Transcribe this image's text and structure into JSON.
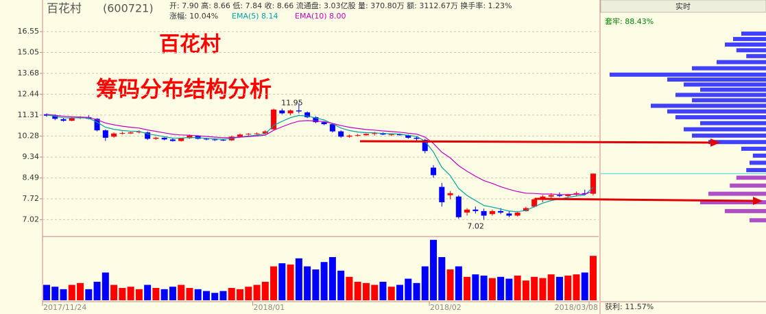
{
  "header": {
    "name": "百花村",
    "code": "(600721)",
    "quote": "开: 7.90 高: 8.66 低: 7.84 收: 8.66 流通盘: 3.03亿股 量: 370.80万 额: 3112.67万 换手率: 1.23%",
    "change": "涨幅: 10.04%",
    "ema5": "EMA(5) 8.14",
    "ema10": "EMA(10) 8.00"
  },
  "overlay": {
    "title": "百花村",
    "subtitle": "筹码分布结构分析"
  },
  "chart_data": {
    "type": "candlestick",
    "log_scale": true,
    "grid": true,
    "categories": [
      "2017/11/24",
      null,
      null,
      null,
      null,
      null,
      null,
      null,
      null,
      null,
      null,
      null,
      null,
      null,
      null,
      null,
      null,
      null,
      null,
      null,
      null,
      null,
      null,
      null,
      null,
      "2018/01",
      null,
      null,
      null,
      null,
      null,
      null,
      null,
      null,
      null,
      null,
      null,
      null,
      null,
      null,
      null,
      null,
      null,
      null,
      null,
      null,
      "2018/02",
      null,
      null,
      null,
      null,
      null,
      null,
      null,
      null,
      null,
      null,
      null,
      null,
      null,
      null,
      null,
      null,
      null,
      null,
      "2018/03/08"
    ],
    "ohlc": [
      [
        11.35,
        11.4,
        11.22,
        11.28
      ],
      [
        11.28,
        11.35,
        11.05,
        11.12
      ],
      [
        11.1,
        11.18,
        10.98,
        11.02
      ],
      [
        11.02,
        11.2,
        11.0,
        11.15
      ],
      [
        11.15,
        11.25,
        11.1,
        11.2
      ],
      [
        11.2,
        11.3,
        11.1,
        11.12
      ],
      [
        11.12,
        11.15,
        10.5,
        10.55
      ],
      [
        10.55,
        10.6,
        10.05,
        10.2
      ],
      [
        10.25,
        10.45,
        10.2,
        10.4
      ],
      [
        10.4,
        10.5,
        10.35,
        10.42
      ],
      [
        10.4,
        10.48,
        10.38,
        10.45
      ],
      [
        10.45,
        10.55,
        10.4,
        10.48
      ],
      [
        10.45,
        10.5,
        10.1,
        10.15
      ],
      [
        10.15,
        10.25,
        10.1,
        10.2
      ],
      [
        10.2,
        10.22,
        10.08,
        10.12
      ],
      [
        10.12,
        10.18,
        10.02,
        10.05
      ],
      [
        10.05,
        10.2,
        10.02,
        10.18
      ],
      [
        10.18,
        10.35,
        10.15,
        10.3
      ],
      [
        10.3,
        10.32,
        10.12,
        10.15
      ],
      [
        10.15,
        10.2,
        10.08,
        10.12
      ],
      [
        10.12,
        10.18,
        10.05,
        10.1
      ],
      [
        10.1,
        10.15,
        10.05,
        10.08
      ],
      [
        10.08,
        10.3,
        10.05,
        10.25
      ],
      [
        10.25,
        10.4,
        10.2,
        10.35
      ],
      [
        10.35,
        10.42,
        10.3,
        10.38
      ],
      [
        10.38,
        10.45,
        10.3,
        10.4
      ],
      [
        10.4,
        10.55,
        10.35,
        10.5
      ],
      [
        10.6,
        11.65,
        10.55,
        11.6
      ],
      [
        11.55,
        11.65,
        11.35,
        11.4
      ],
      [
        11.4,
        11.6,
        11.3,
        11.55
      ],
      [
        11.55,
        11.95,
        11.4,
        11.5
      ],
      [
        11.45,
        11.5,
        11.15,
        11.2
      ],
      [
        11.2,
        11.25,
        10.9,
        10.95
      ],
      [
        10.95,
        11.0,
        10.8,
        10.85
      ],
      [
        10.85,
        10.9,
        10.45,
        10.5
      ],
      [
        10.5,
        10.55,
        10.2,
        10.25
      ],
      [
        10.25,
        10.35,
        10.2,
        10.3
      ],
      [
        10.3,
        10.38,
        10.25,
        10.32
      ],
      [
        10.32,
        10.4,
        10.28,
        10.38
      ],
      [
        10.38,
        10.48,
        10.3,
        10.42
      ],
      [
        10.42,
        10.45,
        10.32,
        10.35
      ],
      [
        10.35,
        10.4,
        10.28,
        10.36
      ],
      [
        10.36,
        10.4,
        10.3,
        10.32
      ],
      [
        10.32,
        10.35,
        10.15,
        10.2
      ],
      [
        10.2,
        10.25,
        10.05,
        10.15
      ],
      [
        10.1,
        10.15,
        9.5,
        9.6
      ],
      [
        8.9,
        9.0,
        8.5,
        8.6
      ],
      [
        8.15,
        8.3,
        7.45,
        7.6
      ],
      [
        7.85,
        8.0,
        7.7,
        7.92
      ],
      [
        7.8,
        7.85,
        7.05,
        7.1
      ],
      [
        7.25,
        7.4,
        7.15,
        7.35
      ],
      [
        7.35,
        7.45,
        7.22,
        7.3
      ],
      [
        7.3,
        7.38,
        7.02,
        7.15
      ],
      [
        7.2,
        7.35,
        7.15,
        7.3
      ],
      [
        7.3,
        7.4,
        7.2,
        7.25
      ],
      [
        7.22,
        7.3,
        7.1,
        7.15
      ],
      [
        7.15,
        7.28,
        7.12,
        7.25
      ],
      [
        7.3,
        7.45,
        7.28,
        7.4
      ],
      [
        7.45,
        7.75,
        7.42,
        7.7
      ],
      [
        7.7,
        7.85,
        7.6,
        7.8
      ],
      [
        7.8,
        7.92,
        7.72,
        7.85
      ],
      [
        7.85,
        7.95,
        7.78,
        7.82
      ],
      [
        7.82,
        7.9,
        7.75,
        7.88
      ],
      [
        7.88,
        7.98,
        7.82,
        7.92
      ],
      [
        7.92,
        8.05,
        7.85,
        7.9
      ],
      [
        7.9,
        8.66,
        7.84,
        8.66
      ]
    ],
    "up_color": "#ff0000",
    "down_color": "#0000ff",
    "series": [
      {
        "name": "EMA(5)",
        "color": "#00a0a0",
        "values": [
          11.32,
          11.25,
          11.17,
          11.16,
          11.17,
          11.15,
          10.95,
          10.7,
          10.6,
          10.54,
          10.51,
          10.5,
          10.38,
          10.32,
          10.25,
          10.18,
          10.18,
          10.22,
          10.2,
          10.17,
          10.15,
          10.13,
          10.17,
          10.23,
          10.28,
          10.32,
          10.38,
          10.79,
          10.99,
          11.18,
          11.29,
          11.26,
          11.16,
          11.06,
          10.87,
          10.66,
          10.54,
          10.47,
          10.44,
          10.43,
          10.4,
          10.39,
          10.37,
          10.31,
          10.26,
          10.04,
          9.56,
          8.91,
          8.58,
          8.09,
          7.84,
          7.66,
          7.49,
          7.43,
          7.37,
          7.3,
          7.28,
          7.32,
          7.45,
          7.57,
          7.66,
          7.71,
          7.77,
          7.82,
          7.85,
          8.14
        ]
      },
      {
        "name": "EMA(10)",
        "color": "#c000c0",
        "values": [
          11.35,
          11.3,
          11.25,
          11.22,
          11.21,
          11.19,
          11.07,
          10.91,
          10.82,
          10.75,
          10.7,
          10.66,
          10.57,
          10.5,
          10.43,
          10.36,
          10.33,
          10.32,
          10.29,
          10.26,
          10.23,
          10.2,
          10.21,
          10.23,
          10.25,
          10.28,
          10.32,
          10.55,
          10.72,
          10.88,
          11.0,
          11.03,
          11.01,
          10.98,
          10.89,
          10.78,
          10.7,
          10.64,
          10.59,
          10.56,
          10.52,
          10.49,
          10.46,
          10.41,
          10.37,
          10.23,
          9.94,
          9.55,
          9.3,
          8.98,
          8.75,
          8.56,
          8.39,
          8.28,
          8.16,
          8.06,
          7.98,
          7.92,
          7.91,
          7.89,
          7.89,
          7.87,
          7.87,
          7.88,
          7.88,
          8.0
        ]
      }
    ],
    "ylim": [
      6.5,
      18.07
    ],
    "yticks": [
      16.55,
      15.05,
      13.68,
      12.44,
      11.31,
      10.28,
      9.34,
      8.49,
      7.72,
      7.02
    ],
    "volume": [
      25,
      22,
      18,
      25,
      28,
      18,
      30,
      45,
      25,
      20,
      22,
      18,
      25,
      20,
      18,
      22,
      25,
      20,
      18,
      15,
      12,
      15,
      20,
      18,
      22,
      25,
      30,
      55,
      60,
      58,
      68,
      55,
      50,
      62,
      70,
      48,
      38,
      30,
      28,
      25,
      30,
      22,
      25,
      35,
      28,
      55,
      98,
      70,
      50,
      55,
      38,
      42,
      40,
      36,
      38,
      35,
      40,
      32,
      38,
      36,
      42,
      38,
      40,
      42,
      45,
      72
    ],
    "vlim": [
      0,
      100
    ],
    "chips": {
      "title": "实时",
      "trapped": "套牢: 88.43%",
      "profit": "获利: 11.57%",
      "price_line": 8.66,
      "line_color": "#40d0e0",
      "above_color": "#2020ff",
      "below_color": "#a030c0",
      "prices": [
        16.4,
        16.0,
        15.6,
        15.2,
        14.8,
        14.4,
        14.0,
        13.6,
        13.3,
        13.0,
        12.7,
        12.4,
        12.1,
        11.8,
        11.5,
        11.2,
        10.9,
        10.6,
        10.3,
        10.0,
        9.7,
        9.4,
        9.1,
        8.8,
        8.5,
        8.2,
        7.9,
        7.6,
        7.3,
        7.0
      ],
      "values": [
        15,
        20,
        25,
        18,
        12,
        30,
        45,
        95,
        60,
        50,
        40,
        55,
        45,
        70,
        60,
        55,
        40,
        50,
        45,
        35,
        15,
        8,
        10,
        12,
        18,
        22,
        35,
        40,
        25,
        10
      ],
      "xlim": [
        0,
        100
      ]
    }
  }
}
